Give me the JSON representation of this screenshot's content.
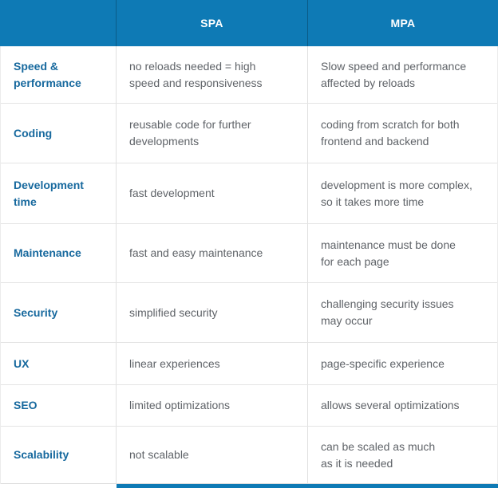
{
  "table": {
    "columns": {
      "spa": "SPA",
      "mpa": "MPA"
    },
    "rows": [
      {
        "label": "Speed &\nperformance",
        "spa": "no reloads needed = high\nspeed and responsiveness",
        "mpa": "Slow speed and performance\naffected by reloads"
      },
      {
        "label": "Coding",
        "spa": "reusable code for further\ndevelopments",
        "mpa": "coding from scratch for both\nfrontend and backend"
      },
      {
        "label": "Development\ntime",
        "spa": "fast development",
        "mpa": "development is more complex,\nso it takes more time"
      },
      {
        "label": "Maintenance",
        "spa": "fast and easy maintenance",
        "mpa": "maintenance must be done\nfor each page"
      },
      {
        "label": "Security",
        "spa": "simplified security",
        "mpa": "challenging security issues\nmay occur"
      },
      {
        "label": "UX",
        "spa": "linear experiences",
        "mpa": "page-specific experience"
      },
      {
        "label": "SEO",
        "spa": "limited optimizations",
        "mpa": "allows several optimizations"
      },
      {
        "label": "Scalability",
        "spa": "not scalable",
        "mpa": "can be scaled as much\nas it is needed"
      }
    ]
  },
  "colors": {
    "header_bg": "#0e7ab5",
    "label_text": "#17699e",
    "body_text": "#5f6368",
    "row_border": "#e4e4e4"
  },
  "chart_data": {
    "type": "table",
    "title": "",
    "columns": [
      "",
      "SPA",
      "MPA"
    ],
    "rows": [
      [
        "Speed & performance",
        "no reloads needed = high speed and responsiveness",
        "Slow speed and performance affected by reloads"
      ],
      [
        "Coding",
        "reusable code for further developments",
        "coding from scratch for both frontend and backend"
      ],
      [
        "Development time",
        "fast development",
        "development is more complex, so it takes more time"
      ],
      [
        "Maintenance",
        "fast and easy maintenance",
        "maintenance must be done for each page"
      ],
      [
        "Security",
        "simplified security",
        "challenging security issues may occur"
      ],
      [
        "UX",
        "linear experiences",
        "page-specific experience"
      ],
      [
        "SEO",
        "limited optimizations",
        "allows several optimizations"
      ],
      [
        "Scalability",
        "not scalable",
        "can be scaled as much as it is needed"
      ]
    ]
  }
}
